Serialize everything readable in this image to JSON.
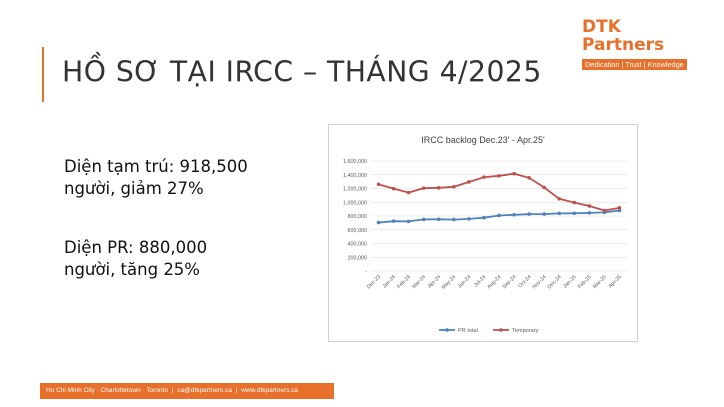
{
  "slide": {
    "title": "HỒ SƠ TẠI IRCC – THÁNG 4/2025",
    "stat_temporary_line1": "Diện tạm trú: 918,500",
    "stat_temporary_line2": "người, giảm 27%",
    "stat_pr_line1": "Diện PR: 880,000",
    "stat_pr_line2": "người, tăng 25%"
  },
  "logo": {
    "mark": "DTK Partners",
    "tagline": "Dedication | Trust | Knowledge"
  },
  "footer": {
    "cities": "Ho Chi Minh City · Charlottetown · Toronto",
    "sep1": "|",
    "email": "ca@dtkpartners.ca",
    "sep2": "|",
    "website": "www.dtkpartners.ca"
  },
  "colors": {
    "brand": "#e8702a",
    "pr_series": "#4f81bd",
    "temporary_series": "#c0504d"
  },
  "chart_data": {
    "type": "line",
    "title": "IRCC backlog Dec.23' - Apr.25'",
    "xlabel": "",
    "ylabel": "",
    "ylim": [
      0,
      1600000
    ],
    "yticks": [
      0,
      200000,
      400000,
      600000,
      800000,
      1000000,
      1200000,
      1400000,
      1600000
    ],
    "ytick_labels": [
      "-",
      "200,000",
      "400,000",
      "600,000",
      "800,000",
      "1,000,000",
      "1,200,000",
      "1,400,000",
      "1,600,000"
    ],
    "grid": true,
    "legend_position": "bottom",
    "categories": [
      "Dec-23",
      "Jan-24",
      "Feb-24",
      "Mar-24",
      "Apr-24",
      "May-24",
      "Jun-24",
      "Jul-24",
      "Aug-24",
      "Sep-24",
      "Oct-24",
      "Nov-24",
      "Dec-24",
      "Jan-25",
      "Feb-25",
      "Mar-25",
      "Apr-25"
    ],
    "series": [
      {
        "name": "PR total",
        "color": "#4f81bd",
        "values": [
          705000,
          725000,
          722000,
          750000,
          752000,
          748000,
          758000,
          775000,
          808000,
          818000,
          828000,
          828000,
          838000,
          840000,
          845000,
          852000,
          880000
        ]
      },
      {
        "name": "Temporary",
        "color": "#c0504d",
        "values": [
          1260000,
          1198000,
          1140000,
          1205000,
          1210000,
          1225000,
          1295000,
          1365000,
          1385000,
          1415000,
          1355000,
          1215000,
          1050000,
          995000,
          945000,
          880000,
          918500
        ]
      }
    ]
  }
}
